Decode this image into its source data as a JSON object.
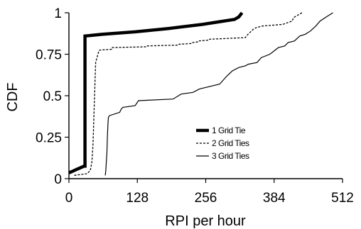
{
  "chart_data": {
    "type": "line",
    "title": "",
    "xlabel": "RPI per hour",
    "ylabel": "CDF",
    "xlim": [
      0,
      512
    ],
    "ylim": [
      0,
      1
    ],
    "xticks": [
      "0",
      "128",
      "256",
      "384",
      "512"
    ],
    "xtick_values": [
      0,
      128,
      256,
      384,
      512
    ],
    "yticks": [
      "0",
      "0.25",
      "0.5",
      "0.75",
      "1"
    ],
    "ytick_values": [
      0,
      0.25,
      0.5,
      0.75,
      1
    ],
    "grid": false,
    "legend_position": "center-right",
    "series": [
      {
        "name": "1 Grid Tie",
        "style": "thick-solid",
        "color": "#000000",
        "x": [
          0,
          7,
          14,
          21,
          28,
          30,
          30,
          62,
          124,
          186,
          250,
          310,
          318,
          324
        ],
        "y": [
          0.035,
          0.045,
          0.055,
          0.065,
          0.075,
          0.075,
          0.86,
          0.87,
          0.885,
          0.905,
          0.93,
          0.96,
          0.975,
          1.0
        ]
      },
      {
        "name": "2 Grid Ties",
        "style": "dashed",
        "color": "#000000",
        "x": [
          10,
          34,
          40,
          43,
          45,
          46,
          47,
          48,
          49,
          50,
          56,
          57,
          80,
          81,
          145,
          146,
          204,
          205,
          230,
          231,
          242,
          243,
          260,
          261,
          330,
          335,
          345,
          350,
          362,
          400,
          418,
          420,
          428,
          436
        ],
        "y": [
          0.02,
          0.03,
          0.05,
          0.1,
          0.2,
          0.3,
          0.4,
          0.5,
          0.6,
          0.7,
          0.77,
          0.775,
          0.78,
          0.79,
          0.795,
          0.8,
          0.805,
          0.81,
          0.815,
          0.82,
          0.825,
          0.83,
          0.835,
          0.84,
          0.85,
          0.87,
          0.9,
          0.91,
          0.92,
          0.93,
          0.95,
          0.97,
          0.985,
          1.0
        ]
      },
      {
        "name": "3 Grid Ties",
        "style": "thin-solid",
        "color": "#000000",
        "x": [
          68,
          69,
          70,
          71,
          72,
          73,
          74,
          76,
          95,
          98,
          101,
          124,
          130,
          195,
          210,
          232,
          244,
          282,
          296,
          306,
          318,
          330,
          336,
          352,
          360,
          376,
          392,
          404,
          410,
          422,
          432,
          442,
          452,
          462,
          470,
          484,
          494
        ],
        "y": [
          0.02,
          0.05,
          0.1,
          0.15,
          0.25,
          0.33,
          0.37,
          0.38,
          0.4,
          0.42,
          0.43,
          0.44,
          0.47,
          0.48,
          0.51,
          0.52,
          0.54,
          0.57,
          0.62,
          0.65,
          0.67,
          0.68,
          0.69,
          0.7,
          0.73,
          0.75,
          0.79,
          0.8,
          0.82,
          0.83,
          0.86,
          0.87,
          0.89,
          0.92,
          0.95,
          0.98,
          1.0
        ]
      }
    ]
  }
}
